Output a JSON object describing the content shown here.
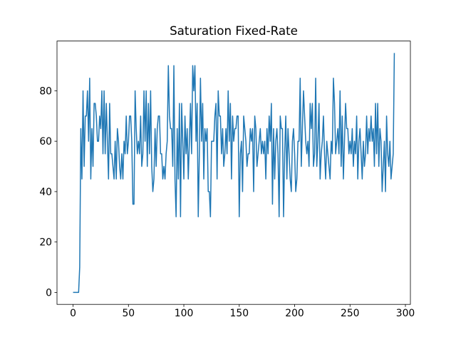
{
  "chart_data": {
    "type": "line",
    "title": "Saturation Fixed-Rate",
    "color": "#1f77b4",
    "x": [
      0,
      1,
      2,
      3,
      4,
      5,
      6,
      7,
      8,
      9,
      10,
      11,
      12,
      13,
      14,
      15,
      16,
      17,
      18,
      19,
      20,
      21,
      22,
      23,
      24,
      25,
      26,
      27,
      28,
      29,
      30,
      31,
      32,
      33,
      34,
      35,
      36,
      37,
      38,
      39,
      40,
      41,
      42,
      43,
      44,
      45,
      46,
      47,
      48,
      49,
      50,
      51,
      52,
      53,
      54,
      55,
      56,
      57,
      58,
      59,
      60,
      61,
      62,
      63,
      64,
      65,
      66,
      67,
      68,
      69,
      70,
      71,
      72,
      73,
      74,
      75,
      76,
      77,
      78,
      79,
      80,
      81,
      82,
      83,
      84,
      85,
      86,
      87,
      88,
      89,
      90,
      91,
      92,
      93,
      94,
      95,
      96,
      97,
      98,
      99,
      100,
      101,
      102,
      103,
      104,
      105,
      106,
      107,
      108,
      109,
      110,
      111,
      112,
      113,
      114,
      115,
      116,
      117,
      118,
      119,
      120,
      121,
      122,
      123,
      124,
      125,
      126,
      127,
      128,
      129,
      130,
      131,
      132,
      133,
      134,
      135,
      136,
      137,
      138,
      139,
      140,
      141,
      142,
      143,
      144,
      145,
      146,
      147,
      148,
      149,
      150,
      151,
      152,
      153,
      154,
      155,
      156,
      157,
      158,
      159,
      160,
      161,
      162,
      163,
      164,
      165,
      166,
      167,
      168,
      169,
      170,
      171,
      172,
      173,
      174,
      175,
      176,
      177,
      178,
      179,
      180,
      181,
      182,
      183,
      184,
      185,
      186,
      187,
      188,
      189,
      190,
      191,
      192,
      193,
      194,
      195,
      196,
      197,
      198,
      199,
      200,
      201,
      202,
      203,
      204,
      205,
      206,
      207,
      208,
      209,
      210,
      211,
      212,
      213,
      214,
      215,
      216,
      217,
      218,
      219,
      220,
      221,
      222,
      223,
      224,
      225,
      226,
      227,
      228,
      229,
      230,
      231,
      232,
      233,
      234,
      235,
      236,
      237,
      238,
      239,
      240,
      241,
      242,
      243,
      244,
      245,
      246,
      247,
      248,
      249,
      250,
      251,
      252,
      253,
      254,
      255,
      256,
      257,
      258,
      259,
      260,
      261,
      262,
      263,
      264,
      265,
      266,
      267,
      268,
      269,
      270,
      271,
      272,
      273,
      274,
      275,
      276,
      277,
      278,
      279,
      280,
      281,
      282,
      283,
      284,
      285,
      286,
      287,
      288,
      289,
      290
    ],
    "values": [
      0,
      0,
      0,
      0,
      0,
      0,
      10,
      65,
      45,
      80,
      50,
      70,
      70,
      80,
      60,
      85,
      45,
      65,
      50,
      75,
      75,
      70,
      60,
      60,
      70,
      65,
      80,
      55,
      80,
      55,
      75,
      60,
      45,
      75,
      55,
      55,
      50,
      45,
      60,
      45,
      65,
      60,
      50,
      45,
      55,
      45,
      60,
      55,
      70,
      55,
      60,
      70,
      70,
      60,
      35,
      35,
      80,
      65,
      55,
      60,
      55,
      70,
      50,
      55,
      80,
      60,
      80,
      50,
      75,
      55,
      80,
      50,
      40,
      45,
      65,
      50,
      65,
      70,
      70,
      55,
      55,
      45,
      50,
      45,
      55,
      60,
      90,
      70,
      65,
      65,
      50,
      90,
      45,
      30,
      65,
      45,
      75,
      30,
      75,
      60,
      45,
      70,
      55,
      65,
      45,
      60,
      75,
      55,
      90,
      80,
      90,
      60,
      75,
      30,
      55,
      85,
      60,
      75,
      45,
      65,
      60,
      65,
      40,
      40,
      30,
      60,
      60,
      60,
      70,
      75,
      45,
      80,
      70,
      70,
      55,
      65,
      50,
      55,
      65,
      55,
      80,
      60,
      75,
      45,
      70,
      60,
      65,
      65,
      70,
      70,
      30,
      55,
      60,
      40,
      70,
      65,
      60,
      50,
      55,
      55,
      65,
      60,
      65,
      40,
      70,
      65,
      50,
      55,
      60,
      65,
      55,
      60,
      55,
      60,
      45,
      65,
      55,
      70,
      60,
      75,
      35,
      65,
      45,
      60,
      65,
      55,
      30,
      70,
      65,
      65,
      30,
      55,
      70,
      45,
      65,
      55,
      45,
      40,
      60,
      65,
      55,
      40,
      45,
      60,
      60,
      85,
      50,
      65,
      80,
      70,
      60,
      55,
      60,
      50,
      75,
      65,
      75,
      50,
      55,
      85,
      50,
      60,
      75,
      45,
      55,
      60,
      70,
      55,
      45,
      60,
      55,
      50,
      45,
      60,
      55,
      85,
      75,
      55,
      60,
      65,
      55,
      80,
      50,
      70,
      45,
      60,
      75,
      65,
      65,
      55,
      60,
      55,
      65,
      50,
      60,
      55,
      70,
      45,
      60,
      65,
      55,
      45,
      60,
      50,
      55,
      70,
      55,
      65,
      60,
      70,
      60,
      65,
      50,
      75,
      55,
      75,
      50,
      65,
      60,
      40,
      50,
      60,
      40,
      70,
      55,
      50,
      60,
      45,
      50,
      55,
      95
    ],
    "xlim": [
      -14.5,
      304.5
    ],
    "xticks": [
      0,
      50,
      100,
      150,
      200,
      250,
      300
    ],
    "ylim": [
      -4.75,
      99.75
    ],
    "yticks": [
      0,
      20,
      40,
      60,
      80
    ]
  }
}
